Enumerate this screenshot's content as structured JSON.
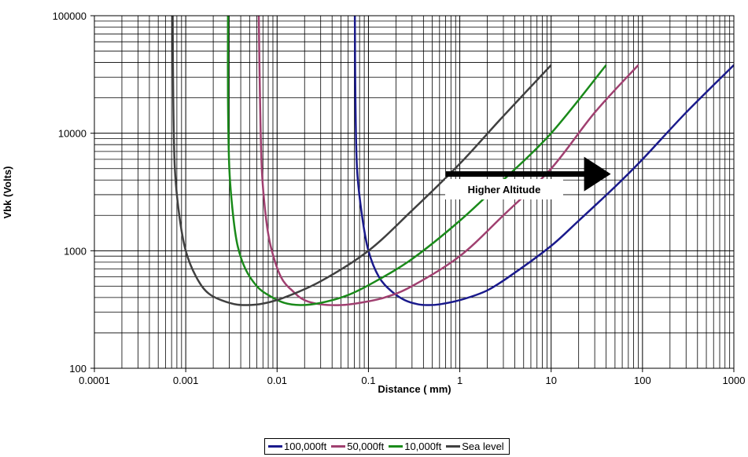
{
  "chart_data": {
    "type": "line",
    "title": "",
    "xlabel": "Distance ( mm)",
    "ylabel": "Vbk (Volts)",
    "x_scale": "log",
    "y_scale": "log",
    "xlim": [
      0.0001,
      1000
    ],
    "ylim": [
      100,
      100000
    ],
    "x_ticks": [
      "0.0001",
      "0.001",
      "0.01",
      "0.1",
      "1",
      "10",
      "100",
      "1000"
    ],
    "y_ticks": [
      "100",
      "1000",
      "10000",
      "100000"
    ],
    "grid": true,
    "legend_position": "bottom",
    "series": [
      {
        "name": "100,000ft",
        "color": "#1a1a8c",
        "points": [
          [
            0.071,
            100000
          ],
          [
            0.072,
            20000
          ],
          [
            0.075,
            5000
          ],
          [
            0.085,
            2000
          ],
          [
            0.1,
            1000
          ],
          [
            0.13,
            600
          ],
          [
            0.18,
            450
          ],
          [
            0.25,
            380
          ],
          [
            0.35,
            350
          ],
          [
            0.45,
            345
          ],
          [
            0.6,
            350
          ],
          [
            1.0,
            380
          ],
          [
            2.0,
            460
          ],
          [
            4.0,
            650
          ],
          [
            10,
            1100
          ],
          [
            20,
            1800
          ],
          [
            50,
            3500
          ],
          [
            100,
            6000
          ],
          [
            300,
            15000
          ],
          [
            1000,
            38000
          ]
        ]
      },
      {
        "name": "50,000ft",
        "color": "#a04070",
        "points": [
          [
            0.0063,
            100000
          ],
          [
            0.0065,
            20000
          ],
          [
            0.0068,
            5000
          ],
          [
            0.0075,
            2000
          ],
          [
            0.0085,
            1100
          ],
          [
            0.011,
            600
          ],
          [
            0.015,
            450
          ],
          [
            0.02,
            380
          ],
          [
            0.03,
            350
          ],
          [
            0.05,
            345
          ],
          [
            0.08,
            360
          ],
          [
            0.15,
            400
          ],
          [
            0.3,
            500
          ],
          [
            1.0,
            900
          ],
          [
            3.0,
            2000
          ],
          [
            10,
            5000
          ],
          [
            30,
            15000
          ],
          [
            90,
            38000
          ]
        ]
      },
      {
        "name": "10,000ft",
        "color": "#1a8a1a",
        "points": [
          [
            0.0029,
            100000
          ],
          [
            0.0029,
            20000
          ],
          [
            0.003,
            5000
          ],
          [
            0.0033,
            2000
          ],
          [
            0.0037,
            1100
          ],
          [
            0.0045,
            700
          ],
          [
            0.006,
            500
          ],
          [
            0.008,
            420
          ],
          [
            0.012,
            360
          ],
          [
            0.018,
            345
          ],
          [
            0.03,
            360
          ],
          [
            0.06,
            420
          ],
          [
            0.12,
            550
          ],
          [
            0.3,
            850
          ],
          [
            1.0,
            1800
          ],
          [
            3.0,
            4000
          ],
          [
            10,
            10000
          ],
          [
            40,
            38000
          ]
        ]
      },
      {
        "name": "Sea level",
        "color": "#404040",
        "points": [
          [
            0.00072,
            100000
          ],
          [
            0.00073,
            20000
          ],
          [
            0.00076,
            5000
          ],
          [
            0.00085,
            2000
          ],
          [
            0.001,
            1000
          ],
          [
            0.0013,
            600
          ],
          [
            0.0018,
            430
          ],
          [
            0.003,
            360
          ],
          [
            0.0045,
            345
          ],
          [
            0.007,
            355
          ],
          [
            0.012,
            400
          ],
          [
            0.03,
            550
          ],
          [
            0.1,
            1000
          ],
          [
            0.3,
            2200
          ],
          [
            1.0,
            5500
          ],
          [
            3.0,
            14000
          ],
          [
            10,
            38000
          ]
        ]
      }
    ],
    "annotation": {
      "text": "Higher Altitude",
      "arrow_from": [
        0.7,
        4500
      ],
      "arrow_to": [
        45,
        4500
      ]
    }
  }
}
